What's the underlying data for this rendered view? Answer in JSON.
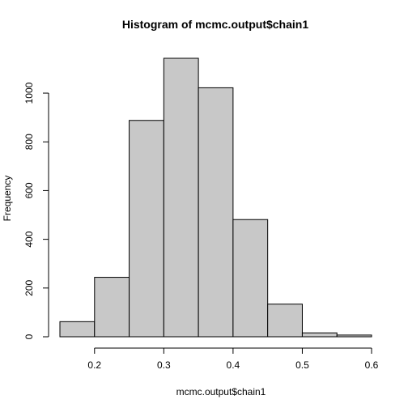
{
  "chart_data": {
    "type": "bar",
    "title": "Histogram of mcmc.output$chain1",
    "xlabel": "mcmc.output$chain1",
    "ylabel": "Frequency",
    "bins": [
      {
        "x0": 0.15,
        "x1": 0.2,
        "count": 62
      },
      {
        "x0": 0.2,
        "x1": 0.25,
        "count": 244
      },
      {
        "x0": 0.25,
        "x1": 0.3,
        "count": 888
      },
      {
        "x0": 0.3,
        "x1": 0.35,
        "count": 1143
      },
      {
        "x0": 0.35,
        "x1": 0.4,
        "count": 1022
      },
      {
        "x0": 0.4,
        "x1": 0.45,
        "count": 481
      },
      {
        "x0": 0.45,
        "x1": 0.5,
        "count": 134
      },
      {
        "x0": 0.5,
        "x1": 0.55,
        "count": 16
      },
      {
        "x0": 0.55,
        "x1": 0.6,
        "count": 7
      }
    ],
    "xlim": [
      0.15,
      0.6
    ],
    "ylim": [
      0,
      1143
    ],
    "xticks": [
      0.2,
      0.3,
      0.4,
      0.5,
      0.6
    ],
    "xtick_labels": [
      "0.2",
      "0.3",
      "0.4",
      "0.5",
      "0.6"
    ],
    "yticks": [
      0,
      200,
      400,
      600,
      800,
      1000
    ],
    "ytick_labels": [
      "0",
      "200",
      "400",
      "600",
      "800",
      "1000"
    ],
    "grid": false,
    "bar_color": "#c8c8c8",
    "edge_color": "#000000"
  }
}
